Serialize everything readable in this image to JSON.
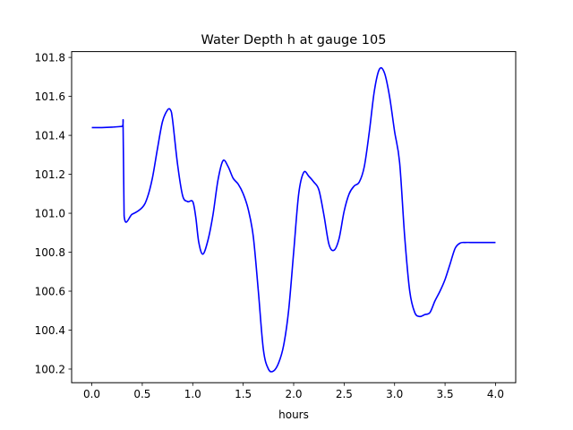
{
  "chart_data": {
    "type": "line",
    "title": "Water Depth h at gauge 105",
    "xlabel": "hours",
    "ylabel": "",
    "xlim": [
      -0.2,
      4.2
    ],
    "ylim": [
      100.13,
      101.83
    ],
    "xticks": [
      "0.0",
      "0.5",
      "1.0",
      "1.5",
      "2.0",
      "2.5",
      "3.0",
      "3.5",
      "4.0"
    ],
    "yticks": [
      "100.2",
      "100.4",
      "100.6",
      "100.8",
      "101.0",
      "101.2",
      "101.4",
      "101.6",
      "101.8"
    ],
    "grid": false,
    "legend": "none",
    "series": [
      {
        "color": "#0000ff",
        "x": [
          0.0,
          0.1,
          0.2,
          0.3,
          0.31,
          0.32,
          0.4,
          0.5,
          0.55,
          0.6,
          0.65,
          0.7,
          0.75,
          0.78,
          0.8,
          0.85,
          0.9,
          0.95,
          1.0,
          1.03,
          1.06,
          1.1,
          1.15,
          1.2,
          1.25,
          1.3,
          1.35,
          1.4,
          1.45,
          1.5,
          1.55,
          1.6,
          1.65,
          1.7,
          1.75,
          1.8,
          1.85,
          1.9,
          1.95,
          2.0,
          2.05,
          2.1,
          2.15,
          2.2,
          2.25,
          2.3,
          2.35,
          2.4,
          2.45,
          2.5,
          2.55,
          2.6,
          2.65,
          2.7,
          2.75,
          2.8,
          2.85,
          2.9,
          2.95,
          3.0,
          3.05,
          3.1,
          3.15,
          3.2,
          3.25,
          3.3,
          3.35,
          3.4,
          3.45,
          3.5,
          3.55,
          3.6,
          3.65,
          3.7,
          3.75,
          3.8,
          3.85,
          3.9,
          3.95,
          4.0
        ],
        "y": [
          101.44,
          101.44,
          101.442,
          101.446,
          101.446,
          100.987,
          100.995,
          101.03,
          101.08,
          101.18,
          101.33,
          101.47,
          101.53,
          101.53,
          101.48,
          101.25,
          101.09,
          101.06,
          101.06,
          100.98,
          100.85,
          100.79,
          100.86,
          100.99,
          101.17,
          101.27,
          101.24,
          101.18,
          101.15,
          101.1,
          101.02,
          100.88,
          100.6,
          100.3,
          100.2,
          100.19,
          100.23,
          100.32,
          100.5,
          100.8,
          101.1,
          101.21,
          101.19,
          101.16,
          101.12,
          100.99,
          100.84,
          100.81,
          100.87,
          101.01,
          101.1,
          101.14,
          101.16,
          101.24,
          101.42,
          101.63,
          101.74,
          101.72,
          101.6,
          101.42,
          101.26,
          100.88,
          100.6,
          100.49,
          100.47,
          100.48,
          100.49,
          100.55,
          100.6,
          100.66,
          100.74,
          100.82,
          100.847,
          100.85,
          100.85,
          100.85,
          100.85,
          100.85,
          100.85,
          100.85
        ]
      }
    ]
  }
}
